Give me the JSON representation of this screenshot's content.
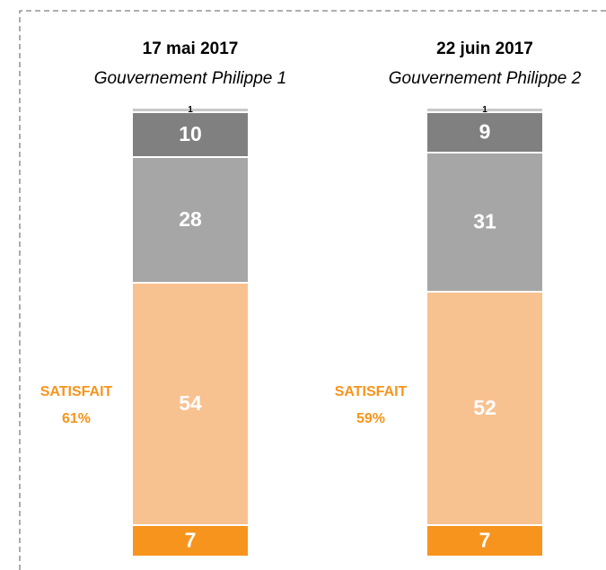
{
  "chart_data": {
    "type": "stacked_bar",
    "categories": [
      "17 mai 2017",
      "22 juin 2017"
    ],
    "subtitles": [
      "Gouvernement Philippe 1",
      "Gouvernement Philippe 2"
    ],
    "series": [
      {
        "color": "#F7941D",
        "label_color": "#FFFFFF",
        "values": [
          7,
          7
        ]
      },
      {
        "color": "#F8C190",
        "label_color": "#FFFFFF",
        "values": [
          54,
          52
        ]
      },
      {
        "color": "#A6A6A6",
        "label_color": "#FFFFFF",
        "values": [
          28,
          31
        ]
      },
      {
        "color": "#808080",
        "label_color": "#FFFFFF",
        "values": [
          10,
          9
        ]
      },
      {
        "color": "#C9C9C9",
        "label_color": "#000000",
        "values": [
          1,
          1
        ]
      }
    ],
    "annotations": [
      {
        "text": "SATISFAIT",
        "percent": "61%"
      },
      {
        "text": "SATISFAIT",
        "percent": "59%"
      }
    ]
  }
}
